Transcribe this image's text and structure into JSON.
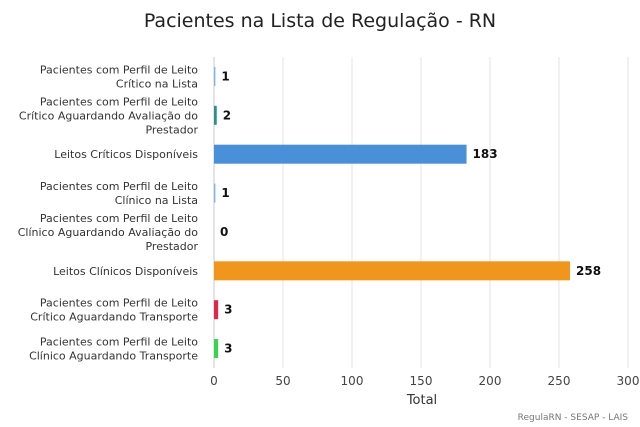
{
  "chart_data": {
    "type": "bar",
    "orientation": "horizontal",
    "title": "Pacientes na Lista de Regulação - RN",
    "xlabel": "Total",
    "xlim": [
      0,
      300
    ],
    "xticks": [
      0,
      50,
      100,
      150,
      200,
      250,
      300
    ],
    "grid": true,
    "legend": "none",
    "credits": "RegulaRN - SESAP - LAIS",
    "categories": [
      [
        "Pacientes com Perfil de Leito",
        "Crítico na Lista"
      ],
      [
        "Pacientes com Perfil de Leito",
        "Crítico Aguardando Avaliação do",
        "Prestador"
      ],
      [
        "Leitos Críticos Disponíveis"
      ],
      [
        "Pacientes com Perfil de Leito",
        "Clínico na Lista"
      ],
      [
        "Pacientes com Perfil de Leito",
        "Clínico Aguardando Avaliação do",
        "Prestador"
      ],
      [
        "Leitos Clínicos Disponíveis"
      ],
      [
        "Pacientes com Perfil de Leito",
        "Crítico Aguardando Transporte"
      ],
      [
        "Pacientes com Perfil de Leito",
        "Clínico Aguardando Transporte"
      ]
    ],
    "values": [
      1,
      2,
      183,
      1,
      0,
      258,
      3,
      3
    ],
    "colors": [
      "#7cb5ec",
      "#2b908f",
      "#4a90d9",
      "#7cb5ec",
      "#2b908f",
      "#f0961e",
      "#e4254a",
      "#39d353"
    ]
  }
}
